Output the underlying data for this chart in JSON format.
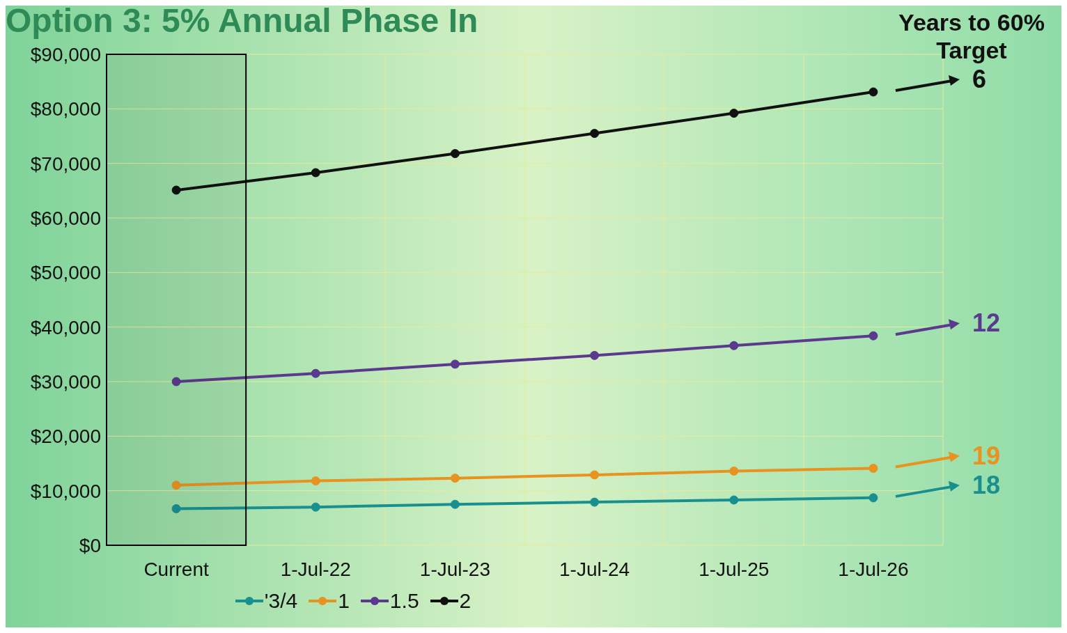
{
  "chart_data": {
    "type": "line",
    "title": "Option 3: 5% Annual Phase In",
    "categories": [
      "Current",
      "1-Jul-22",
      "1-Jul-23",
      "1-Jul-24",
      "1-Jul-25",
      "1-Jul-26"
    ],
    "series": [
      {
        "name": "'3/4",
        "color": "#1a8f8f",
        "values": [
          6700,
          7000,
          7500,
          7900,
          8300,
          8700
        ]
      },
      {
        "name": "1",
        "color": "#e8921f",
        "values": [
          11000,
          11800,
          12300,
          12900,
          13600,
          14100
        ]
      },
      {
        "name": "1.5",
        "color": "#5b3a8e",
        "values": [
          30000,
          31500,
          33200,
          34800,
          36600,
          38400
        ]
      },
      {
        "name": "2",
        "color": "#111111",
        "values": [
          65100,
          68300,
          71800,
          75500,
          79200,
          83100
        ]
      }
    ],
    "ylim": [
      0,
      90000
    ],
    "yticks": [
      {
        "value": 0,
        "label": "$0"
      },
      {
        "value": 10000,
        "label": "$10,000"
      },
      {
        "value": 20000,
        "label": "$20,000"
      },
      {
        "value": 30000,
        "label": "$30,000"
      },
      {
        "value": 40000,
        "label": "$40,000"
      },
      {
        "value": 50000,
        "label": "$50,000"
      },
      {
        "value": 60000,
        "label": "$60,000"
      },
      {
        "value": 70000,
        "label": "$70,000"
      },
      {
        "value": 80000,
        "label": "$80,000"
      },
      {
        "value": 90000,
        "label": "$90,000"
      }
    ],
    "grid": true,
    "legend": "bottom",
    "marker": "circle",
    "line_style": "solid",
    "bands": [
      {
        "axis": "x",
        "from": "Current",
        "to": "Current",
        "color": "#000000"
      }
    ],
    "annotations": [
      "Years to 60% Target",
      "6",
      "12",
      "19",
      "18"
    ]
  }
}
